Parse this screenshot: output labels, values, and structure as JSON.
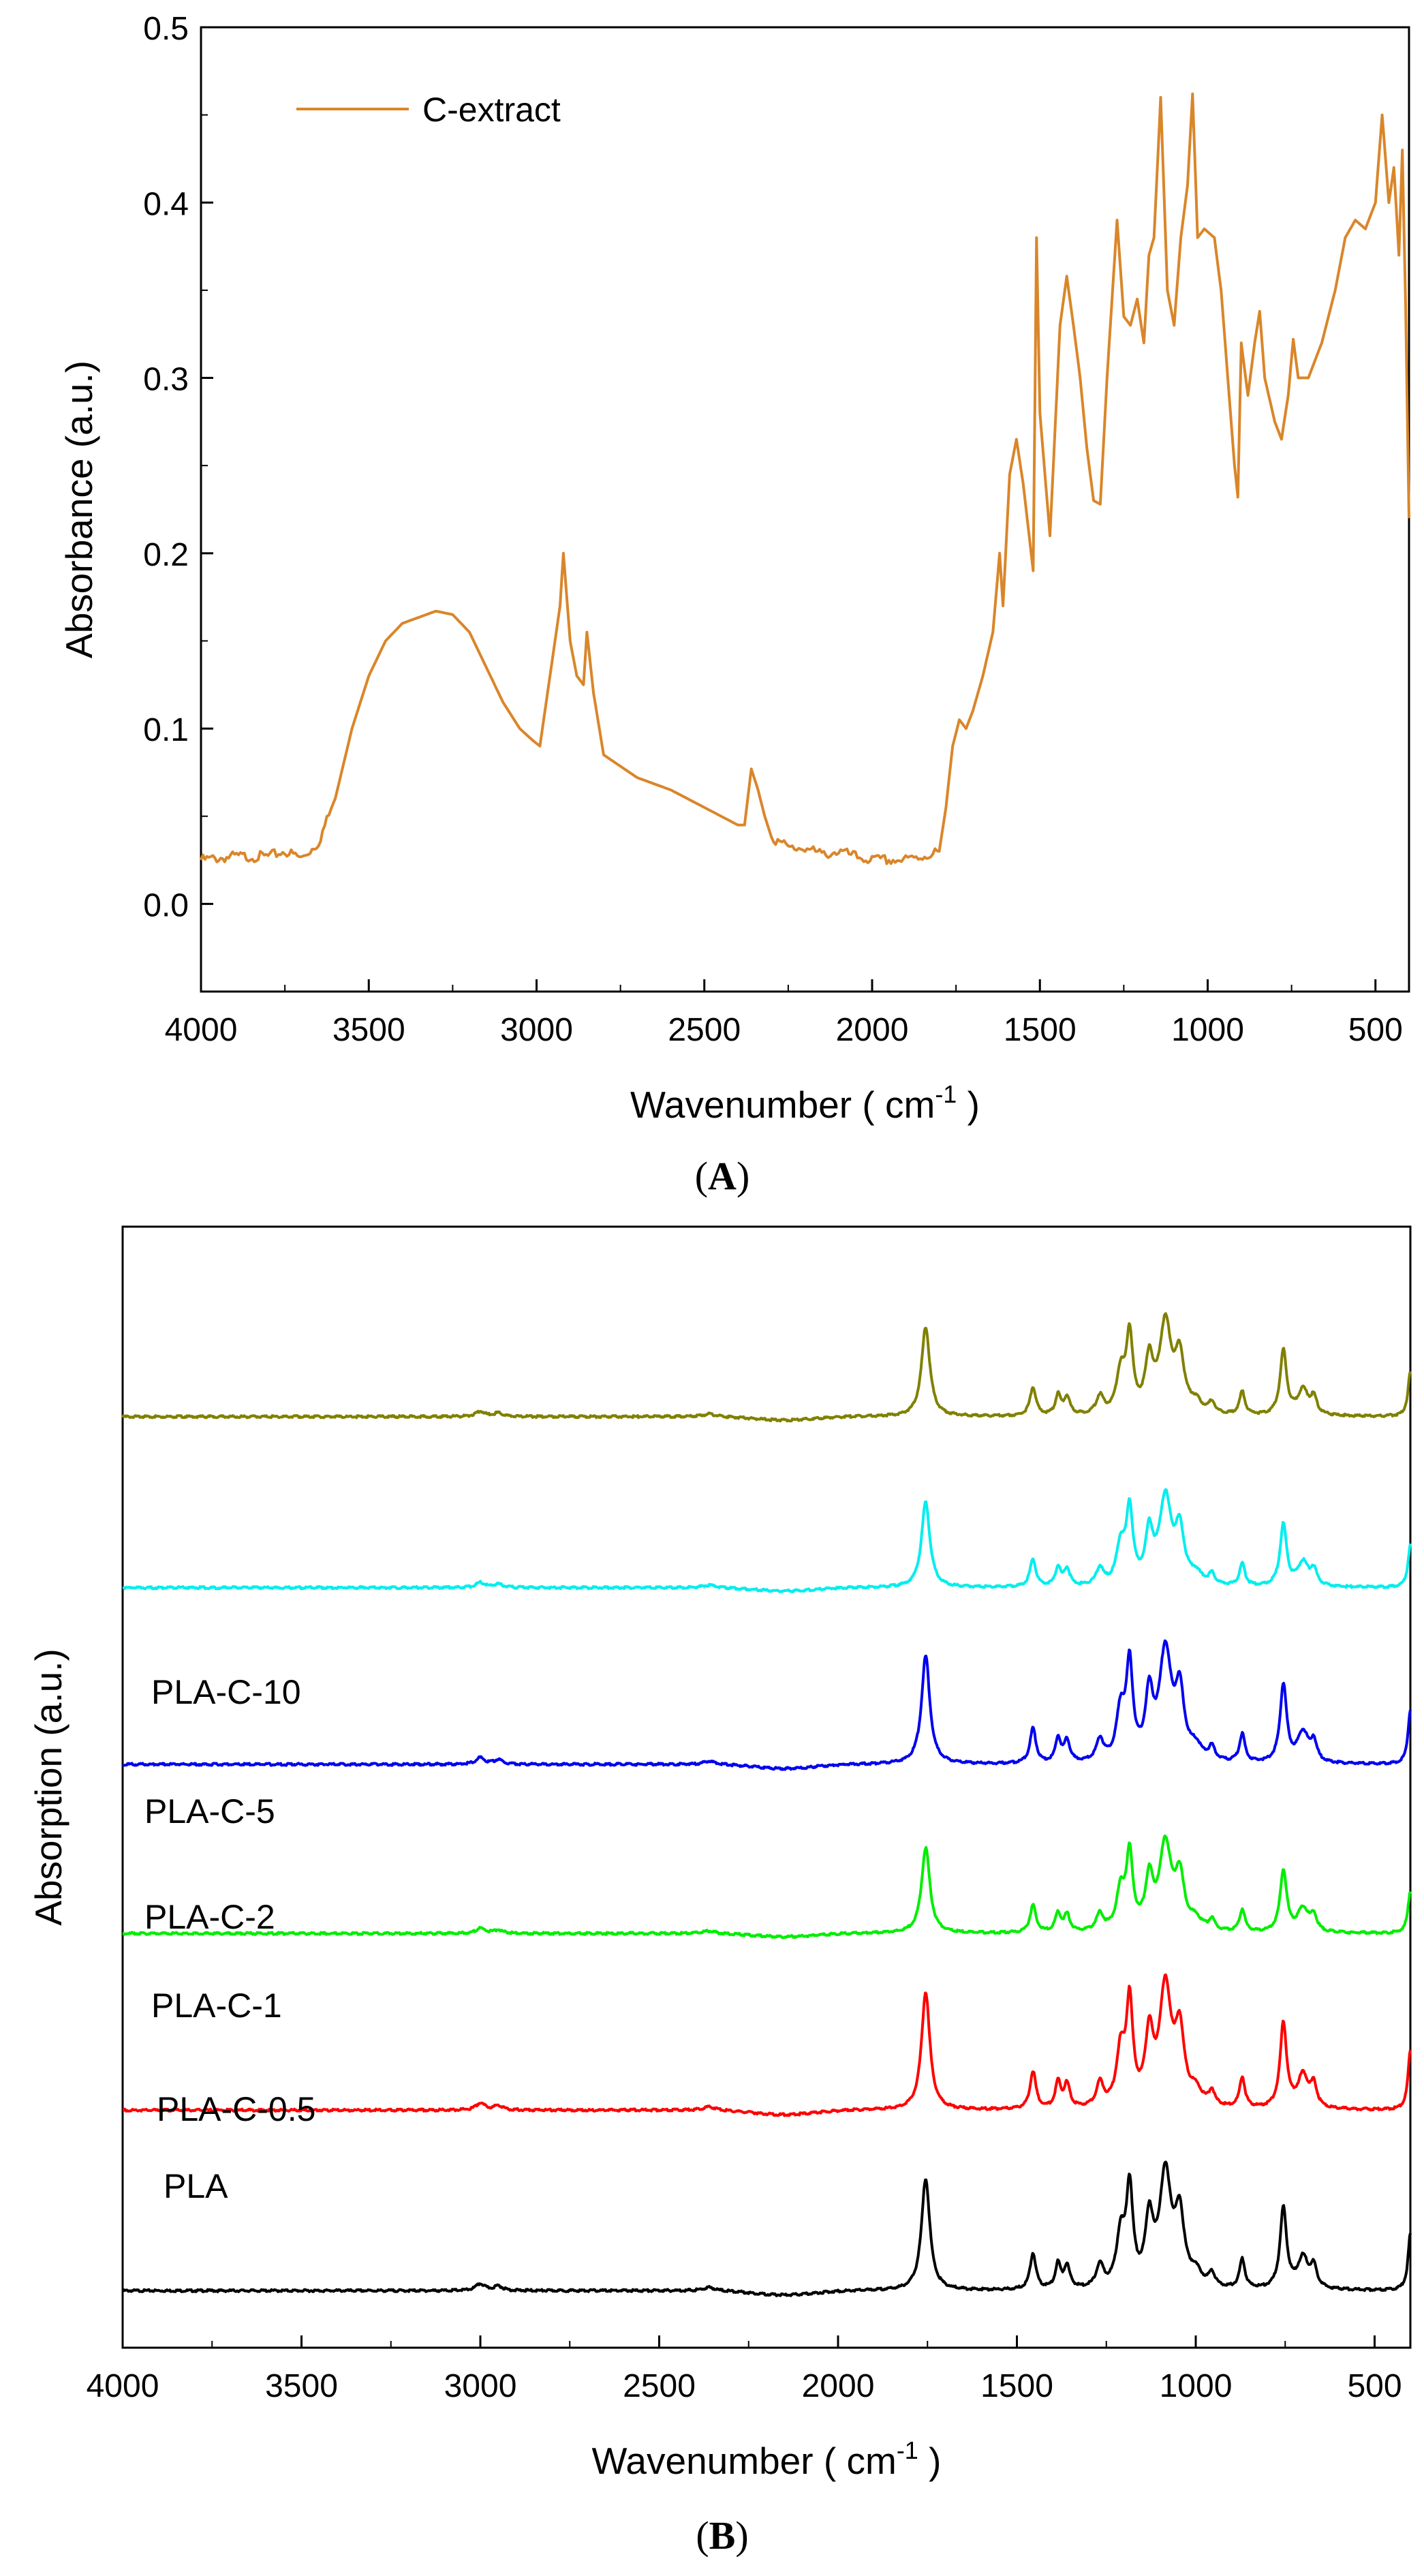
{
  "chart_data": [
    {
      "type": "line",
      "panel_label": "A",
      "xlabel": "Wavenumber",
      "xunit": "cm",
      "xunit_exp": "-1",
      "ylabel": "Absorbance (a.u.)",
      "xlim": [
        4000,
        400
      ],
      "ylim": [
        -0.05,
        0.5
      ],
      "x_ticks": [
        4000,
        3500,
        3000,
        2500,
        2000,
        1500,
        1000,
        500
      ],
      "y_ticks": [
        "0.0",
        "0.1",
        "0.2",
        "0.3",
        "0.4",
        "0.5"
      ],
      "legend_position": "top-left",
      "series": [
        {
          "name": "C-extract",
          "color": "#D9862A",
          "points": [
            [
              4000,
              0.025
            ],
            [
              3900,
              0.027
            ],
            [
              3800,
              0.027
            ],
            [
              3750,
              0.03
            ],
            [
              3700,
              0.026
            ],
            [
              3650,
              0.035
            ],
            [
              3600,
              0.06
            ],
            [
              3550,
              0.1
            ],
            [
              3500,
              0.13
            ],
            [
              3450,
              0.15
            ],
            [
              3400,
              0.16
            ],
            [
              3300,
              0.167
            ],
            [
              3250,
              0.165
            ],
            [
              3200,
              0.155
            ],
            [
              3150,
              0.135
            ],
            [
              3100,
              0.115
            ],
            [
              3050,
              0.1
            ],
            [
              3010,
              0.093
            ],
            [
              2990,
              0.09
            ],
            [
              2960,
              0.13
            ],
            [
              2930,
              0.17
            ],
            [
              2920,
              0.2
            ],
            [
              2900,
              0.15
            ],
            [
              2880,
              0.13
            ],
            [
              2860,
              0.125
            ],
            [
              2850,
              0.155
            ],
            [
              2830,
              0.12
            ],
            [
              2800,
              0.085
            ],
            [
              2700,
              0.072
            ],
            [
              2600,
              0.065
            ],
            [
              2500,
              0.055
            ],
            [
              2400,
              0.045
            ],
            [
              2380,
              0.045
            ],
            [
              2360,
              0.077
            ],
            [
              2340,
              0.065
            ],
            [
              2320,
              0.05
            ],
            [
              2300,
              0.038
            ],
            [
              2250,
              0.032
            ],
            [
              2200,
              0.032
            ],
            [
              2150,
              0.028
            ],
            [
              2100,
              0.03
            ],
            [
              2050,
              0.027
            ],
            [
              2000,
              0.025
            ],
            [
              1950,
              0.025
            ],
            [
              1900,
              0.025
            ],
            [
              1850,
              0.027
            ],
            [
              1800,
              0.03
            ],
            [
              1780,
              0.055
            ],
            [
              1760,
              0.09
            ],
            [
              1740,
              0.105
            ],
            [
              1720,
              0.1
            ],
            [
              1700,
              0.11
            ],
            [
              1670,
              0.13
            ],
            [
              1640,
              0.155
            ],
            [
              1620,
              0.2
            ],
            [
              1610,
              0.17
            ],
            [
              1590,
              0.245
            ],
            [
              1570,
              0.265
            ],
            [
              1550,
              0.24
            ],
            [
              1520,
              0.19
            ],
            [
              1510,
              0.38
            ],
            [
              1500,
              0.28
            ],
            [
              1470,
              0.21
            ],
            [
              1455,
              0.27
            ],
            [
              1440,
              0.33
            ],
            [
              1420,
              0.358
            ],
            [
              1400,
              0.33
            ],
            [
              1380,
              0.3
            ],
            [
              1360,
              0.26
            ],
            [
              1340,
              0.23
            ],
            [
              1320,
              0.228
            ],
            [
              1300,
              0.3
            ],
            [
              1270,
              0.39
            ],
            [
              1250,
              0.335
            ],
            [
              1230,
              0.33
            ],
            [
              1210,
              0.345
            ],
            [
              1190,
              0.32
            ],
            [
              1175,
              0.37
            ],
            [
              1160,
              0.38
            ],
            [
              1140,
              0.46
            ],
            [
              1120,
              0.35
            ],
            [
              1100,
              0.33
            ],
            [
              1080,
              0.38
            ],
            [
              1060,
              0.41
            ],
            [
              1045,
              0.462
            ],
            [
              1030,
              0.38
            ],
            [
              1010,
              0.385
            ],
            [
              980,
              0.38
            ],
            [
              960,
              0.35
            ],
            [
              940,
              0.3
            ],
            [
              920,
              0.25
            ],
            [
              910,
              0.232
            ],
            [
              900,
              0.32
            ],
            [
              880,
              0.29
            ],
            [
              860,
              0.32
            ],
            [
              845,
              0.338
            ],
            [
              830,
              0.3
            ],
            [
              800,
              0.275
            ],
            [
              780,
              0.265
            ],
            [
              760,
              0.29
            ],
            [
              745,
              0.322
            ],
            [
              730,
              0.3
            ],
            [
              700,
              0.3
            ],
            [
              660,
              0.32
            ],
            [
              620,
              0.35
            ],
            [
              590,
              0.38
            ],
            [
              560,
              0.39
            ],
            [
              530,
              0.385
            ],
            [
              500,
              0.4
            ],
            [
              480,
              0.45
            ],
            [
              460,
              0.4
            ],
            [
              445,
              0.42
            ],
            [
              430,
              0.37
            ],
            [
              420,
              0.43
            ],
            [
              410,
              0.34
            ],
            [
              400,
              0.22
            ]
          ]
        }
      ]
    },
    {
      "type": "line",
      "panel_label": "B",
      "xlabel": "Wavenumber",
      "xunit": "cm",
      "xunit_exp": "-1",
      "ylabel": "Absorption (a.u.)",
      "xlim": [
        4000,
        400
      ],
      "x_ticks": [
        4000,
        3500,
        3000,
        2500,
        2000,
        1500,
        1000,
        500
      ],
      "y_ticks": [],
      "note": "Spectra are vertically offset; y-values are relative absorbance with per-series baseline offset.",
      "peaks": [
        {
          "x": 3000,
          "h": 0.06,
          "w": 15
        },
        {
          "x": 2950,
          "h": 0.04,
          "w": 15
        },
        {
          "x": 2360,
          "h": 0.03,
          "w": 20
        },
        {
          "x": 1755,
          "h": 1.0,
          "w": 14
        },
        {
          "x": 1455,
          "h": 0.32,
          "w": 10
        },
        {
          "x": 1385,
          "h": 0.22,
          "w": 9
        },
        {
          "x": 1360,
          "h": 0.2,
          "w": 10
        },
        {
          "x": 1268,
          "h": 0.2,
          "w": 12
        },
        {
          "x": 1210,
          "h": 0.45,
          "w": 14
        },
        {
          "x": 1185,
          "h": 0.86,
          "w": 11
        },
        {
          "x": 1130,
          "h": 0.57,
          "w": 13
        },
        {
          "x": 1085,
          "h": 1.0,
          "w": 20
        },
        {
          "x": 1045,
          "h": 0.6,
          "w": 15
        },
        {
          "x": 1000,
          "h": 0.12,
          "w": 20
        },
        {
          "x": 955,
          "h": 0.12,
          "w": 10
        },
        {
          "x": 870,
          "h": 0.26,
          "w": 9
        },
        {
          "x": 755,
          "h": 0.72,
          "w": 11
        },
        {
          "x": 700,
          "h": 0.28,
          "w": 18
        },
        {
          "x": 670,
          "h": 0.18,
          "w": 10
        },
        {
          "x": 400,
          "h": 0.5,
          "w": 8
        }
      ],
      "series": [
        {
          "name": "PLA",
          "color": "#000000",
          "offset": 0.0,
          "scale": 0.59
        },
        {
          "name": "PLA-C-0.5",
          "color": "#FF0000",
          "offset": 0.95,
          "scale": 0.62
        },
        {
          "name": "PLA-C-1",
          "color": "#00EE00",
          "offset": 1.88,
          "scale": 0.45
        },
        {
          "name": "PLA-C-2",
          "color": "#0000EE",
          "offset": 2.77,
          "scale": 0.57
        },
        {
          "name": "PLA-C-5",
          "color": "#00EEEE",
          "offset": 3.7,
          "scale": 0.45
        },
        {
          "name": "PLA-C-10",
          "color": "#808000",
          "offset": 4.6,
          "scale": 0.47
        }
      ],
      "ylim": [
        -0.3,
        5.6
      ]
    }
  ]
}
